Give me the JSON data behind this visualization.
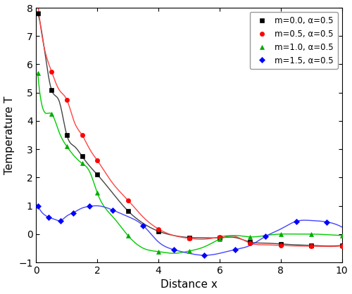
{
  "xlabel": "Distance x",
  "ylabel": "Temperature T",
  "xlim": [
    0,
    10
  ],
  "ylim": [
    -1,
    8
  ],
  "yticks": [
    -1,
    0,
    1,
    2,
    3,
    4,
    5,
    6,
    7,
    8
  ],
  "xticks": [
    0,
    2,
    4,
    6,
    8,
    10
  ],
  "series": [
    {
      "label": "m=0.0, α=0.5",
      "color": "#444444",
      "marker": "s",
      "marker_color": "#000000",
      "x": [
        0.05,
        0.25,
        0.5,
        0.75,
        1.0,
        1.25,
        1.5,
        1.75,
        2.0,
        2.5,
        3.0,
        3.5,
        4.0,
        4.5,
        5.0,
        5.5,
        6.0,
        6.5,
        7.0,
        7.5,
        8.0,
        8.5,
        9.0,
        9.5,
        10.0
      ],
      "y": [
        7.8,
        6.65,
        5.1,
        4.7,
        3.5,
        3.1,
        2.75,
        2.4,
        2.1,
        1.45,
        0.82,
        0.38,
        0.1,
        -0.05,
        -0.12,
        -0.13,
        -0.13,
        -0.12,
        -0.28,
        -0.32,
        -0.35,
        -0.38,
        -0.4,
        -0.42,
        -0.4
      ]
    },
    {
      "label": "m=0.5, α=0.5",
      "color": "#ff4444",
      "marker": "o",
      "marker_color": "#ff0000",
      "x": [
        0.05,
        0.25,
        0.5,
        0.75,
        1.0,
        1.25,
        1.5,
        1.75,
        2.0,
        2.5,
        3.0,
        3.5,
        4.0,
        4.5,
        5.0,
        5.5,
        6.0,
        6.5,
        7.0,
        7.5,
        8.0,
        8.5,
        9.0,
        9.5,
        10.0
      ],
      "y": [
        8.2,
        6.65,
        5.75,
        5.1,
        4.75,
        3.95,
        3.5,
        3.0,
        2.6,
        1.8,
        1.2,
        0.6,
        0.18,
        -0.05,
        -0.15,
        -0.18,
        -0.1,
        -0.08,
        -0.32,
        -0.38,
        -0.4,
        -0.42,
        -0.43,
        -0.44,
        -0.42
      ]
    },
    {
      "label": "m=1.0, α=0.5",
      "color": "#00cc00",
      "marker": "^",
      "marker_color": "#00aa00",
      "x": [
        0.05,
        0.25,
        0.5,
        0.75,
        1.0,
        1.25,
        1.5,
        1.75,
        2.0,
        2.5,
        3.0,
        3.5,
        4.0,
        4.5,
        5.0,
        5.5,
        6.0,
        6.5,
        7.0,
        7.5,
        8.0,
        8.5,
        9.0,
        9.5,
        10.0
      ],
      "y": [
        5.7,
        4.35,
        4.25,
        3.6,
        3.1,
        2.75,
        2.5,
        2.2,
        1.45,
        0.62,
        -0.05,
        -0.5,
        -0.62,
        -0.68,
        -0.6,
        -0.45,
        -0.18,
        -0.05,
        -0.1,
        -0.05,
        0.0,
        0.0,
        0.0,
        -0.02,
        -0.05
      ]
    },
    {
      "label": "m=1.5, α=0.5",
      "color": "#4444ff",
      "marker": "D",
      "marker_color": "#0000ff",
      "x": [
        0.05,
        0.2,
        0.4,
        0.6,
        0.8,
        1.0,
        1.2,
        1.5,
        1.75,
        2.0,
        2.5,
        3.0,
        3.5,
        4.0,
        4.5,
        5.0,
        5.5,
        6.0,
        6.5,
        7.0,
        7.5,
        8.0,
        8.5,
        9.0,
        9.5,
        10.0
      ],
      "y": [
        1.0,
        0.75,
        0.6,
        0.52,
        0.48,
        0.64,
        0.75,
        0.92,
        0.98,
        1.0,
        0.85,
        0.62,
        0.3,
        -0.28,
        -0.55,
        -0.68,
        -0.75,
        -0.68,
        -0.55,
        -0.4,
        -0.08,
        0.18,
        0.45,
        0.48,
        0.43,
        0.25
      ]
    }
  ],
  "legend_loc": "upper right",
  "figure_size": [
    5.0,
    4.18
  ],
  "dpi": 100
}
